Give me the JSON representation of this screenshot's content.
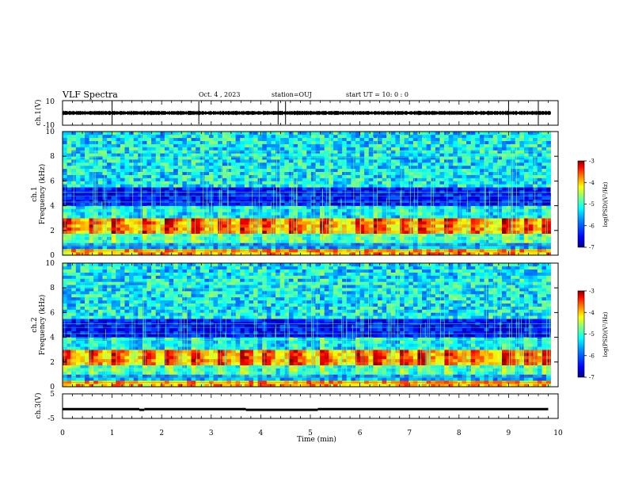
{
  "header": {
    "title": "VLF Spectra",
    "date": "Oct. 4 , 2023",
    "station": "station=OUJ",
    "start_time": "start UT = 10: 0 : 0"
  },
  "colors": {
    "colormap": [
      "#000080",
      "#0000ff",
      "#0080ff",
      "#00ffff",
      "#80ff80",
      "#ffff00",
      "#ff8000",
      "#ff0000",
      "#800000"
    ],
    "trace": "#000000",
    "frame": "#000000",
    "background": "#ffffff"
  },
  "chart_data": [
    {
      "type": "line",
      "panel": "ch1-waveform",
      "ylabel": "ch.1(V)",
      "ylim": [
        -10,
        10
      ],
      "y_tick_labels": [
        "10",
        "-10"
      ],
      "x_unit": "min",
      "xlim": [
        0,
        10
      ],
      "series": [
        {
          "x": [
            0,
            0.5,
            1,
            1.5,
            2,
            2.5,
            3,
            3.5,
            4,
            4.5,
            5,
            5.5,
            6,
            6.5,
            7,
            7.5,
            8,
            8.5,
            9,
            9.5,
            9.8
          ],
          "values": [
            0,
            0,
            0,
            0,
            0,
            0,
            0,
            0,
            0,
            0,
            0,
            0,
            0,
            0,
            0,
            0,
            0,
            0,
            0,
            0,
            0
          ]
        }
      ],
      "spikes_min": [
        1.0,
        2.75,
        4.35,
        4.5,
        9.0,
        9.6
      ]
    },
    {
      "type": "heatmap",
      "panel": "ch1-spectrogram",
      "channel_label": "ch.1",
      "ylabel": "Frequency (kHz)",
      "ylim": [
        0,
        10
      ],
      "y_tick_labels": [
        "0",
        "2",
        "4",
        "6",
        "8",
        "10"
      ],
      "xlim": [
        0,
        10
      ],
      "colorbar": {
        "label": "log(PSD)(V²/Hz)",
        "range": [
          -7,
          -3
        ],
        "tick_labels": [
          "-3",
          "-4",
          "-5",
          "-6",
          "-7"
        ]
      },
      "features": {
        "band_kHz": [
          1.8,
          3.0
        ],
        "bursts_min": [
          0,
          0.5,
          1.0,
          1.6,
          2.1,
          2.6,
          3.1,
          3.6,
          4.0,
          4.6,
          5.2,
          5.9,
          6.3,
          6.8,
          7.2,
          7.7,
          8.2,
          8.9,
          9.3,
          9.7
        ]
      }
    },
    {
      "type": "heatmap",
      "panel": "ch2-spectrogram",
      "channel_label": "ch.2",
      "ylabel": "Frequency (kHz)",
      "ylim": [
        0,
        10
      ],
      "y_tick_labels": [
        "0",
        "2",
        "4",
        "6",
        "8",
        "10"
      ],
      "xlim": [
        0,
        10
      ],
      "colorbar": {
        "label": "log(PSD)(V²/Hz)",
        "range": [
          -7,
          -3
        ],
        "tick_labels": [
          "-3",
          "-4",
          "-5",
          "-6",
          "-7"
        ]
      },
      "features": {
        "band_kHz": [
          1.8,
          3.0
        ],
        "bursts_min": [
          0,
          0.5,
          1.0,
          1.6,
          2.1,
          2.6,
          3.1,
          3.6,
          4.0,
          4.6,
          5.2,
          5.9,
          6.3,
          6.8,
          7.2,
          7.7,
          8.2,
          8.9,
          9.3,
          9.7
        ]
      }
    },
    {
      "type": "line",
      "panel": "ch3-waveform",
      "ylabel": "ch.3(V)",
      "ylim": [
        -5,
        5
      ],
      "y_tick_labels": [
        "5",
        "-5"
      ],
      "xlabel": "Time (min)",
      "xlim": [
        0,
        10
      ],
      "x_tick_labels": [
        "0",
        "1",
        "2",
        "3",
        "4",
        "5",
        "6",
        "7",
        "8",
        "9",
        "10"
      ],
      "segments": [
        {
          "x": [
            0,
            1.55
          ],
          "value": -1.2
        },
        {
          "x": [
            1.55,
            1.65
          ],
          "value": -1.5
        },
        {
          "x": [
            1.65,
            3.7
          ],
          "value": -1.2
        },
        {
          "x": [
            3.7,
            5.15
          ],
          "value": -1.5
        },
        {
          "x": [
            5.15,
            9.8
          ],
          "value": -1.2
        }
      ]
    }
  ]
}
